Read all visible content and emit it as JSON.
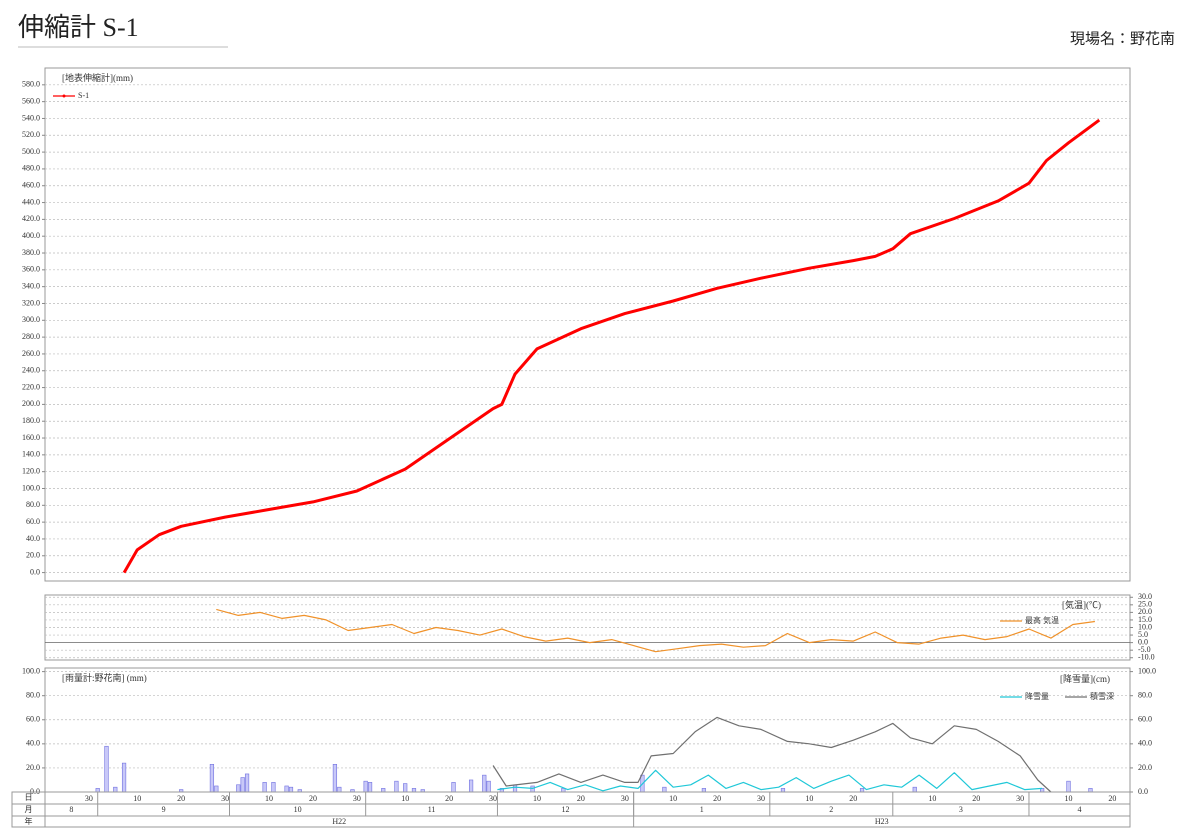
{
  "header": {
    "title": "伸縮計 S-1",
    "site": "現場名：野花南"
  },
  "x_axis": {
    "xlim": [
      "2010-08-20",
      "2011-04-24"
    ],
    "row_labels": [
      "日",
      "月",
      "年"
    ],
    "days": [
      {
        "value": "2010-08-30",
        "label": "30"
      },
      {
        "value": "2010-09-10",
        "label": "10"
      },
      {
        "value": "2010-09-20",
        "label": "20"
      },
      {
        "value": "2010-09-30",
        "label": "30"
      },
      {
        "value": "2010-10-10",
        "label": "10"
      },
      {
        "value": "2010-10-20",
        "label": "20"
      },
      {
        "value": "2010-10-30",
        "label": "30"
      },
      {
        "value": "2010-11-10",
        "label": "10"
      },
      {
        "value": "2010-11-20",
        "label": "20"
      },
      {
        "value": "2010-11-30",
        "label": "30"
      },
      {
        "value": "2010-12-10",
        "label": "10"
      },
      {
        "value": "2010-12-20",
        "label": "20"
      },
      {
        "value": "2010-12-30",
        "label": "30"
      },
      {
        "value": "2011-01-10",
        "label": "10"
      },
      {
        "value": "2011-01-20",
        "label": "20"
      },
      {
        "value": "2011-01-30",
        "label": "30"
      },
      {
        "value": "2011-02-10",
        "label": "10"
      },
      {
        "value": "2011-02-20",
        "label": "20"
      },
      {
        "value": "2011-03-10",
        "label": "10"
      },
      {
        "value": "2011-03-20",
        "label": "20"
      },
      {
        "value": "2011-03-30",
        "label": "30"
      },
      {
        "value": "2011-04-10",
        "label": "10"
      },
      {
        "value": "2011-04-20",
        "label": "20"
      }
    ],
    "months": [
      {
        "value": "2010-08-01",
        "label": "8"
      },
      {
        "value": "2010-09-01",
        "label": "9"
      },
      {
        "value": "2010-10-01",
        "label": "10"
      },
      {
        "value": "2010-11-01",
        "label": "11"
      },
      {
        "value": "2010-12-01",
        "label": "12"
      },
      {
        "value": "2011-01-01",
        "label": "1"
      },
      {
        "value": "2011-02-01",
        "label": "2"
      },
      {
        "value": "2011-03-01",
        "label": "3"
      },
      {
        "value": "2011-04-01",
        "label": "4"
      }
    ],
    "years": [
      {
        "value": "2010-01-01",
        "label": "H22"
      },
      {
        "value": "2011-01-01",
        "label": "H23"
      }
    ]
  },
  "chart_data": [
    {
      "type": "line",
      "ylabel": "[地表伸縮計](mm)",
      "legend": "upper left",
      "grid": true,
      "ylim": [
        -10,
        600
      ],
      "yticks": [
        {
          "value": 0,
          "label": "0.0"
        },
        {
          "value": 20,
          "label": "20.0"
        },
        {
          "value": 40,
          "label": "40.0"
        },
        {
          "value": 60,
          "label": "60.0"
        },
        {
          "value": 80,
          "label": "80.0"
        },
        {
          "value": 100,
          "label": "100.0"
        },
        {
          "value": 120,
          "label": "120.0"
        },
        {
          "value": 140,
          "label": "140.0"
        },
        {
          "value": 160,
          "label": "160.0"
        },
        {
          "value": 180,
          "label": "180.0"
        },
        {
          "value": 200,
          "label": "200.0"
        },
        {
          "value": 220,
          "label": "220.0"
        },
        {
          "value": 240,
          "label": "240.0"
        },
        {
          "value": 260,
          "label": "260.0"
        },
        {
          "value": 280,
          "label": "280.0"
        },
        {
          "value": 300,
          "label": "300.0"
        },
        {
          "value": 320,
          "label": "320.0"
        },
        {
          "value": 340,
          "label": "340.0"
        },
        {
          "value": 360,
          "label": "360.0"
        },
        {
          "value": 380,
          "label": "380.0"
        },
        {
          "value": 400,
          "label": "400.0"
        },
        {
          "value": 420,
          "label": "420.0"
        },
        {
          "value": 440,
          "label": "440.0"
        },
        {
          "value": 460,
          "label": "460.0"
        },
        {
          "value": 480,
          "label": "480.0"
        },
        {
          "value": 500,
          "label": "500.0"
        },
        {
          "value": 520,
          "label": "520.0"
        },
        {
          "value": 540,
          "label": "540.0"
        },
        {
          "value": 560,
          "label": "560.0"
        },
        {
          "value": 580,
          "label": "580.0"
        }
      ],
      "series": [
        {
          "name": "S-1",
          "color": "#ff0000",
          "x": [
            "2010-09-07",
            "2010-09-10",
            "2010-09-15",
            "2010-09-20",
            "2010-09-30",
            "2010-10-10",
            "2010-10-20",
            "2010-10-30",
            "2010-11-10",
            "2010-11-20",
            "2010-11-30",
            "2010-12-02",
            "2010-12-05",
            "2010-12-10",
            "2010-12-20",
            "2010-12-30",
            "2011-01-10",
            "2011-01-20",
            "2011-01-30",
            "2011-02-10",
            "2011-02-20",
            "2011-02-25",
            "2011-03-01",
            "2011-03-05",
            "2011-03-15",
            "2011-03-25",
            "2011-04-01",
            "2011-04-05",
            "2011-04-10",
            "2011-04-17"
          ],
          "values": [
            0,
            27,
            45,
            55,
            66,
            75,
            84,
            97,
            123,
            159,
            195,
            200,
            236,
            266,
            290,
            308,
            323,
            338,
            350,
            362,
            371,
            376,
            385,
            403,
            421,
            442,
            463,
            490,
            511,
            538
          ]
        }
      ]
    },
    {
      "type": "line",
      "ylabel": "[気温](℃)",
      "legend": "upper right",
      "ytick_side": "right",
      "grid": true,
      "ylim": [
        -11.5,
        31.5
      ],
      "yticks": [
        {
          "value": 30,
          "label": "30.0"
        },
        {
          "value": 25,
          "label": "25.0"
        },
        {
          "value": 20,
          "label": "20.0"
        },
        {
          "value": 15,
          "label": "15.0"
        },
        {
          "value": 10,
          "label": "10.0"
        },
        {
          "value": 5,
          "label": "5.0"
        },
        {
          "value": 0,
          "label": "0.0"
        },
        {
          "value": -5,
          "label": "-5.0"
        },
        {
          "value": -10,
          "label": "-10.0"
        }
      ],
      "series": [
        {
          "name": "最高 気温",
          "color": "#f0922a",
          "x": [
            "2010-09-28",
            "2010-10-03",
            "2010-10-08",
            "2010-10-13",
            "2010-10-18",
            "2010-10-23",
            "2010-10-28",
            "2010-11-02",
            "2010-11-07",
            "2010-11-12",
            "2010-11-17",
            "2010-11-22",
            "2010-11-27",
            "2010-12-02",
            "2010-12-07",
            "2010-12-12",
            "2010-12-17",
            "2010-12-22",
            "2010-12-27",
            "2011-01-01",
            "2011-01-06",
            "2011-01-11",
            "2011-01-16",
            "2011-01-21",
            "2011-01-26",
            "2011-01-31",
            "2011-02-05",
            "2011-02-10",
            "2011-02-15",
            "2011-02-20",
            "2011-02-25",
            "2011-03-02",
            "2011-03-07",
            "2011-03-12",
            "2011-03-17",
            "2011-03-22",
            "2011-03-27",
            "2011-04-01",
            "2011-04-06",
            "2011-04-11",
            "2011-04-16"
          ],
          "values": [
            22,
            18,
            20,
            16,
            18,
            15,
            8,
            10,
            12,
            6,
            10,
            8,
            5,
            9,
            4,
            1,
            3,
            0,
            2,
            -2,
            -6,
            -4,
            -2,
            -1,
            -3,
            -2,
            6,
            0,
            2,
            1,
            7,
            0,
            -1,
            3,
            5,
            2,
            4,
            9,
            3,
            12,
            14
          ]
        }
      ]
    },
    {
      "type": "bar_line",
      "ylabel": "[雨量計:野花南] (mm)",
      "y2label": "[降雪量](cm)",
      "legend": "upper right",
      "grid": true,
      "ylim": [
        0,
        103
      ],
      "yticks": [
        {
          "value": 0,
          "label": "0.0"
        },
        {
          "value": 20,
          "label": "20.0"
        },
        {
          "value": 40,
          "label": "40.0"
        },
        {
          "value": 60,
          "label": "60.0"
        },
        {
          "value": 80,
          "label": "80.0"
        },
        {
          "value": 100,
          "label": "100.0"
        }
      ],
      "y2lim": [
        0,
        103
      ],
      "y2ticks": [
        {
          "value": 0,
          "label": "0.0"
        },
        {
          "value": 20,
          "label": "20.0"
        },
        {
          "value": 40,
          "label": "40.0"
        },
        {
          "value": 60,
          "label": "60.0"
        },
        {
          "value": 80,
          "label": "80.0"
        },
        {
          "value": 100,
          "label": "100.0"
        }
      ],
      "bars": {
        "color": "#c8c8f8",
        "x": [
          "2010-09-01",
          "2010-09-03",
          "2010-09-05",
          "2010-09-07",
          "2010-09-20",
          "2010-09-27",
          "2010-09-28",
          "2010-10-03",
          "2010-10-04",
          "2010-10-05",
          "2010-10-09",
          "2010-10-11",
          "2010-10-14",
          "2010-10-15",
          "2010-10-17",
          "2010-10-25",
          "2010-10-26",
          "2010-10-29",
          "2010-11-01",
          "2010-11-02",
          "2010-11-05",
          "2010-11-08",
          "2010-11-10",
          "2010-11-12",
          "2010-11-14",
          "2010-11-21",
          "2010-11-25",
          "2010-11-28",
          "2010-11-29",
          "2010-12-02",
          "2010-12-05",
          "2010-12-09",
          "2010-12-16",
          "2011-01-03",
          "2011-01-08",
          "2011-01-17",
          "2011-02-04",
          "2011-02-22",
          "2011-03-06",
          "2011-04-04",
          "2011-04-10",
          "2011-04-15"
        ],
        "values": [
          3,
          38,
          4,
          24,
          2,
          23,
          5,
          6,
          12,
          15,
          8,
          8,
          5,
          4,
          2,
          23,
          4,
          2,
          9,
          8,
          3,
          9,
          7,
          3,
          2,
          8,
          10,
          14,
          9,
          3,
          6,
          5,
          3,
          14,
          4,
          3,
          3,
          3,
          4,
          3,
          9,
          3
        ]
      },
      "series": [
        {
          "name": "降雪量",
          "color": "#20c8d8",
          "axis": "y2",
          "x": [
            "2010-12-01",
            "2010-12-05",
            "2010-12-09",
            "2010-12-13",
            "2010-12-17",
            "2010-12-21",
            "2010-12-25",
            "2010-12-29",
            "2011-01-02",
            "2011-01-06",
            "2011-01-10",
            "2011-01-14",
            "2011-01-18",
            "2011-01-22",
            "2011-01-26",
            "2011-01-30",
            "2011-02-03",
            "2011-02-07",
            "2011-02-11",
            "2011-02-15",
            "2011-02-19",
            "2011-02-23",
            "2011-02-27",
            "2011-03-03",
            "2011-03-07",
            "2011-03-11",
            "2011-03-15",
            "2011-03-19",
            "2011-03-23",
            "2011-03-27",
            "2011-03-31",
            "2011-04-04"
          ],
          "values": [
            2,
            4,
            3,
            8,
            2,
            6,
            1,
            5,
            3,
            18,
            4,
            6,
            14,
            3,
            8,
            2,
            4,
            12,
            3,
            9,
            14,
            2,
            6,
            4,
            14,
            3,
            16,
            2,
            5,
            8,
            2,
            3
          ]
        },
        {
          "name": "積雪深",
          "color": "#707070",
          "axis": "y2",
          "x": [
            "2010-11-30",
            "2010-12-03",
            "2010-12-10",
            "2010-12-15",
            "2010-12-20",
            "2010-12-25",
            "2010-12-30",
            "2011-01-02",
            "2011-01-05",
            "2011-01-10",
            "2011-01-15",
            "2011-01-20",
            "2011-01-25",
            "2011-01-30",
            "2011-02-05",
            "2011-02-10",
            "2011-02-15",
            "2011-02-20",
            "2011-02-25",
            "2011-03-01",
            "2011-03-05",
            "2011-03-10",
            "2011-03-15",
            "2011-03-20",
            "2011-03-25",
            "2011-03-30",
            "2011-04-03",
            "2011-04-06"
          ],
          "values": [
            22,
            5,
            8,
            15,
            8,
            14,
            8,
            8,
            30,
            32,
            50,
            62,
            55,
            52,
            42,
            40,
            37,
            43,
            50,
            57,
            45,
            40,
            55,
            52,
            42,
            30,
            10,
            0
          ]
        }
      ]
    }
  ]
}
